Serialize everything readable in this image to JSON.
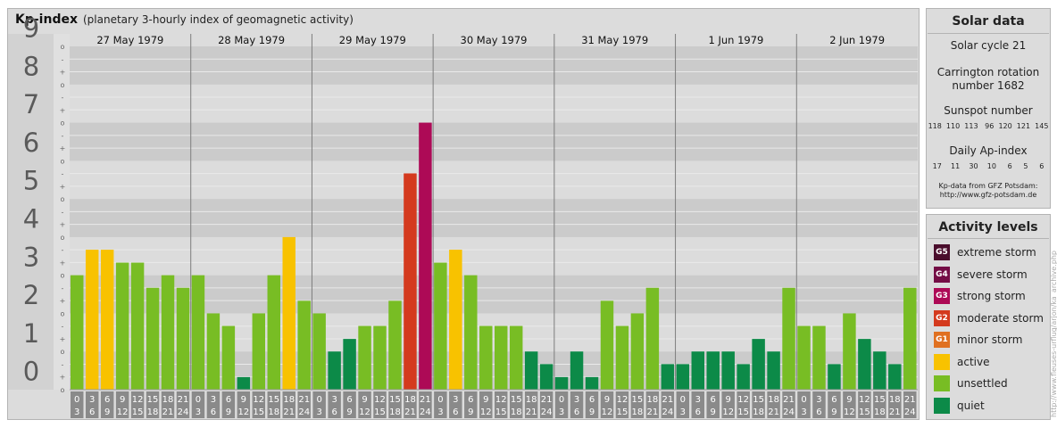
{
  "header": {
    "title": "Kp-index",
    "subtitle": "(planetary 3-hourly index of geomagnetic activity)"
  },
  "solar": {
    "title": "Solar data",
    "cycle": "Solar cycle 21",
    "rotation_line1": "Carrington rotation",
    "rotation_line2": "number 1682",
    "sunspot_label": "Sunspot number",
    "sunspot_values": "118  110  113   96  120  121  145",
    "ap_label": "Daily Ap-index",
    "ap_values": "17    11    30    10     6     5     6",
    "source_line1": "Kp-data from GFZ Potsdam:",
    "source_line2": "http://www.gfz-potsdam.de"
  },
  "activity": {
    "title": "Activity levels",
    "levels": [
      {
        "code": "G5",
        "label": "extreme storm",
        "color": "#4a0d2c"
      },
      {
        "code": "G4",
        "label": "severe storm",
        "color": "#740d45"
      },
      {
        "code": "G3",
        "label": "strong storm",
        "color": "#ad0a56"
      },
      {
        "code": "G2",
        "label": "moderate storm",
        "color": "#d43a1e"
      },
      {
        "code": "G1",
        "label": "minor storm",
        "color": "#e07020"
      },
      {
        "code": "",
        "label": "active",
        "color": "#f8c200"
      },
      {
        "code": "",
        "label": "unsettled",
        "color": "#78bd24"
      },
      {
        "code": "",
        "label": "quiet",
        "color": "#0c8a48"
      }
    ]
  },
  "watermark": "http://www.fleuses-urflug/arjon/ka_archive.php",
  "chart_data": {
    "type": "bar",
    "title": "Kp-index",
    "ylim": [
      0,
      9
    ],
    "y_ticks": [
      "0",
      "1",
      "2",
      "3",
      "4",
      "5",
      "6",
      "7",
      "8",
      "9"
    ],
    "minor_labels": [
      "+",
      "o",
      "-"
    ],
    "days": [
      "27 May 1979",
      "28 May 1979",
      "29 May 1979",
      "30 May 1979",
      "31 May 1979",
      "1 Jun 1979",
      "2 Jun 1979"
    ],
    "hour_start": [
      "0",
      "3",
      "6",
      "9",
      "12",
      "15",
      "18",
      "21"
    ],
    "hour_end": [
      "3",
      "6",
      "9",
      "12",
      "15",
      "18",
      "21",
      "24"
    ],
    "values": [
      3.0,
      3.67,
      3.67,
      3.33,
      3.33,
      2.67,
      3.0,
      2.67,
      3.0,
      2.0,
      1.67,
      0.33,
      2.0,
      3.0,
      4.0,
      2.33,
      2.0,
      1.0,
      1.33,
      1.67,
      1.67,
      2.33,
      5.67,
      7.0,
      3.33,
      3.67,
      3.0,
      1.67,
      1.67,
      1.67,
      1.0,
      0.67,
      0.33,
      1.0,
      0.33,
      2.33,
      1.67,
      2.0,
      2.67,
      0.67,
      0.67,
      1.0,
      1.0,
      1.0,
      0.67,
      1.33,
      1.0,
      2.67,
      1.67,
      1.67,
      0.67,
      2.0,
      1.33,
      1.0,
      0.67,
      2.67
    ]
  }
}
